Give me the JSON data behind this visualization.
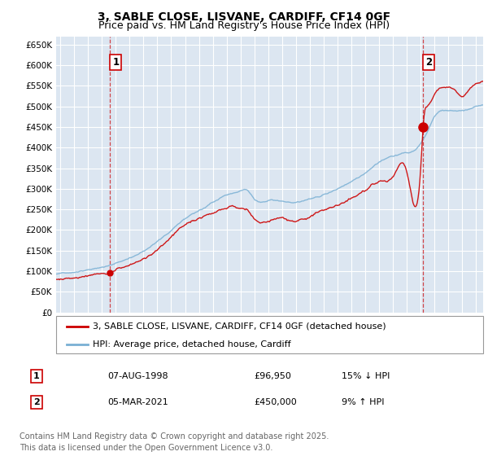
{
  "title": "3, SABLE CLOSE, LISVANE, CARDIFF, CF14 0GF",
  "subtitle": "Price paid vs. HM Land Registry's House Price Index (HPI)",
  "ylabel_ticks": [
    0,
    50000,
    100000,
    150000,
    200000,
    250000,
    300000,
    350000,
    400000,
    450000,
    500000,
    550000,
    600000,
    650000
  ],
  "ylim": [
    0,
    670000
  ],
  "xlim_start": 1994.7,
  "xlim_end": 2025.5,
  "plot_bg": "#dce6f1",
  "grid_color": "#ffffff",
  "line_color_red": "#cc0000",
  "line_color_blue": "#7ab0d4",
  "purchase1_year": 1998.6,
  "purchase1_price": 96950,
  "purchase2_year": 2021.17,
  "purchase2_price": 450000,
  "legend_label_red": "3, SABLE CLOSE, LISVANE, CARDIFF, CF14 0GF (detached house)",
  "legend_label_blue": "HPI: Average price, detached house, Cardiff",
  "table_row1_num": "1",
  "table_row1_date": "07-AUG-1998",
  "table_row1_price": "£96,950",
  "table_row1_hpi": "15% ↓ HPI",
  "table_row2_num": "2",
  "table_row2_date": "05-MAR-2021",
  "table_row2_price": "£450,000",
  "table_row2_hpi": "9% ↑ HPI",
  "footer": "Contains HM Land Registry data © Crown copyright and database right 2025.\nThis data is licensed under the Open Government Licence v3.0.",
  "title_fontsize": 10,
  "subtitle_fontsize": 9,
  "tick_fontsize": 7.5,
  "legend_fontsize": 8,
  "table_fontsize": 8,
  "footer_fontsize": 7
}
